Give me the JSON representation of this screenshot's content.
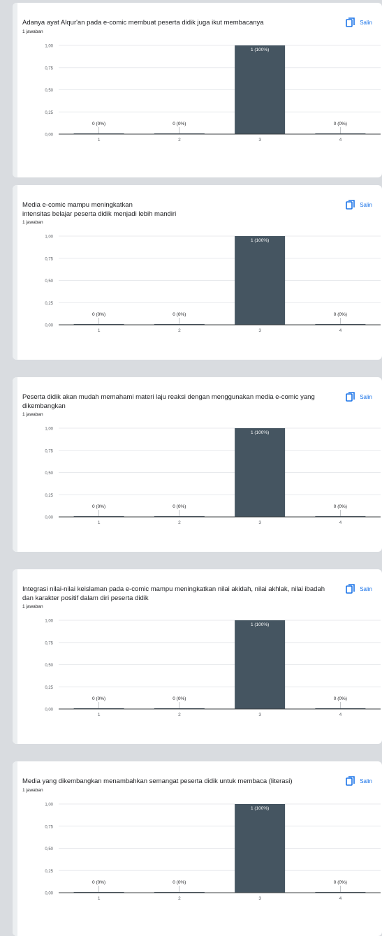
{
  "copy_label": "Salin",
  "colors": {
    "bar": "#455561",
    "accent": "#1a73e8",
    "grid": "#e8eaed",
    "axis": "#5f6368"
  },
  "icons": {
    "copy": "copy-icon"
  },
  "questions": [
    {
      "title": "Adanya ayat Alqur'an pada e-comic membuat peserta didik juga ikut membacanya",
      "response_count": "1 jawaban",
      "chart_data": {
        "type": "bar",
        "categories": [
          "1",
          "2",
          "3",
          "4"
        ],
        "values": [
          0,
          0,
          1,
          0
        ],
        "value_labels": [
          "0 (0%)",
          "0 (0%)",
          "1 (100%)",
          "0 (0%)"
        ],
        "y_ticks": [
          "0,00",
          "0,25",
          "0,50",
          "0,75",
          "1,00"
        ],
        "ylim": [
          0,
          1
        ],
        "grid": true
      }
    },
    {
      "title": "Media e-comic mampu meningkatkan\nintensitas belajar peserta didik menjadi lebih mandiri",
      "response_count": "1 jawaban",
      "chart_data": {
        "type": "bar",
        "categories": [
          "1",
          "2",
          "3",
          "4"
        ],
        "values": [
          0,
          0,
          1,
          0
        ],
        "value_labels": [
          "0 (0%)",
          "0 (0%)",
          "1 (100%)",
          "0 (0%)"
        ],
        "y_ticks": [
          "0,00",
          "0,25",
          "0,50",
          "0,75",
          "1,00"
        ],
        "ylim": [
          0,
          1
        ],
        "grid": true
      }
    },
    {
      "title": "Peserta didik akan mudah memahami materi laju reaksi dengan menggunakan media e-comic yang dikembangkan",
      "response_count": "1 jawaban",
      "chart_data": {
        "type": "bar",
        "categories": [
          "1",
          "2",
          "3",
          "4"
        ],
        "values": [
          0,
          0,
          1,
          0
        ],
        "value_labels": [
          "0 (0%)",
          "0 (0%)",
          "1 (100%)",
          "0 (0%)"
        ],
        "y_ticks": [
          "0,00",
          "0,25",
          "0,50",
          "0,75",
          "1,00"
        ],
        "ylim": [
          0,
          1
        ],
        "grid": true
      }
    },
    {
      "title": "Integrasi nilai-nilai keislaman pada e-comic mampu meningkatkan nilai akidah, nilai akhlak, nilai ibadah dan karakter positif dalam diri peserta didik",
      "response_count": "1 jawaban",
      "chart_data": {
        "type": "bar",
        "categories": [
          "1",
          "2",
          "3",
          "4"
        ],
        "values": [
          0,
          0,
          1,
          0
        ],
        "value_labels": [
          "0 (0%)",
          "0 (0%)",
          "1 (100%)",
          "0 (0%)"
        ],
        "y_ticks": [
          "0,00",
          "0,25",
          "0,50",
          "0,75",
          "1,00"
        ],
        "ylim": [
          0,
          1
        ],
        "grid": true
      }
    },
    {
      "title": "Media yang dikembangkan menambahkan semangat peserta didik untuk membaca (literasi)",
      "response_count": "1 jawaban",
      "chart_data": {
        "type": "bar",
        "categories": [
          "1",
          "2",
          "3",
          "4"
        ],
        "values": [
          0,
          0,
          1,
          0
        ],
        "value_labels": [
          "0 (0%)",
          "0 (0%)",
          "1 (100%)",
          "0 (0%)"
        ],
        "y_ticks": [
          "0,00",
          "0,25",
          "0,50",
          "0,75",
          "1,00"
        ],
        "ylim": [
          0,
          1
        ],
        "grid": true
      }
    }
  ]
}
